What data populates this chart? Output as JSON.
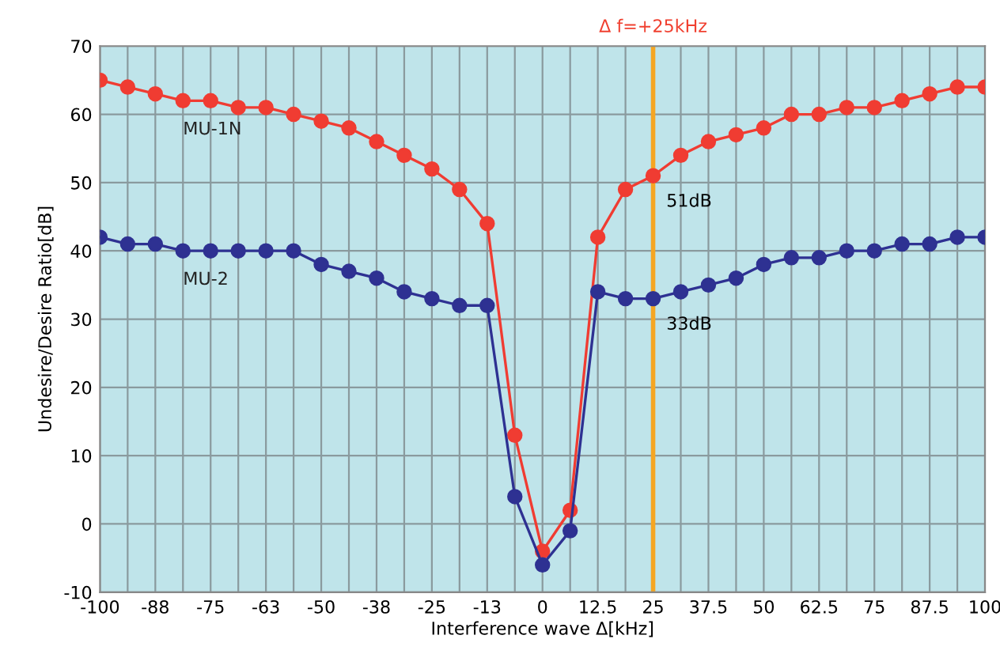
{
  "chart_data": {
    "type": "line",
    "xlabel": "Interference wave Δ[kHz]",
    "ylabel": "Undesire/Desire Ratio[dB]",
    "x": [
      -100,
      -93.75,
      -87.5,
      -81.25,
      -75,
      -68.75,
      -62.5,
      -56.25,
      -50,
      -43.75,
      -37.5,
      -31.25,
      -25,
      -18.75,
      -12.5,
      -6.25,
      0,
      6.25,
      12.5,
      18.75,
      25,
      31.25,
      37.5,
      43.75,
      50,
      56.25,
      62.5,
      68.75,
      75,
      81.25,
      87.5,
      93.75,
      100
    ],
    "series": [
      {
        "name": "MU-1N",
        "color": "#f03c32",
        "values": [
          65,
          64,
          63,
          62,
          62,
          61,
          61,
          60,
          59,
          58,
          56,
          54,
          52,
          49,
          44,
          13,
          -4,
          2,
          42,
          49,
          51,
          54,
          56,
          57,
          58,
          60,
          60,
          61,
          61,
          62,
          63,
          64,
          64
        ]
      },
      {
        "name": "MU-2",
        "color": "#2e3192",
        "values": [
          42,
          41,
          41,
          40,
          40,
          40,
          40,
          40,
          38,
          37,
          36,
          34,
          33,
          32,
          32,
          4,
          -6,
          -1,
          34,
          33,
          33,
          34,
          35,
          36,
          38,
          39,
          39,
          40,
          40,
          41,
          41,
          42,
          42
        ]
      }
    ],
    "xlim": [
      -100,
      100
    ],
    "ylim": [
      -10,
      70
    ],
    "xticks": [
      -100,
      {
        "value": -93.75,
        "label": null
      },
      {
        "value": -87.5,
        "label": "-88"
      },
      {
        "value": -81.25,
        "label": null
      },
      -75,
      {
        "value": -68.75,
        "label": null
      },
      {
        "value": -62.5,
        "label": "-63"
      },
      {
        "value": -56.25,
        "label": null
      },
      -50,
      {
        "value": -43.75,
        "label": null
      },
      {
        "value": -37.5,
        "label": "-38"
      },
      {
        "value": -31.25,
        "label": null
      },
      -25,
      {
        "value": -18.75,
        "label": null
      },
      {
        "value": -12.5,
        "label": "-13"
      },
      {
        "value": -6.25,
        "label": null
      },
      0,
      {
        "value": 6.25,
        "label": null
      },
      12.5,
      {
        "value": 18.75,
        "label": null
      },
      25,
      {
        "value": 31.25,
        "label": null
      },
      37.5,
      {
        "value": 43.75,
        "label": null
      },
      50,
      {
        "value": 56.25,
        "label": null
      },
      62.5,
      {
        "value": 68.75,
        "label": null
      },
      75,
      {
        "value": 81.25,
        "label": null
      },
      87.5,
      {
        "value": 93.75,
        "label": null
      },
      100
    ],
    "yticks": [
      -10,
      0,
      10,
      20,
      30,
      40,
      50,
      60,
      70
    ],
    "grid": true,
    "legend": false,
    "marker": "circle",
    "line_style": "solid",
    "ref_lines": [
      {
        "axis": "x",
        "value": 25,
        "label": "Δ f=+25kHz",
        "color": "#f5a623"
      }
    ],
    "annotations": [
      {
        "text": "51dB",
        "x": 25,
        "y": 51
      },
      {
        "text": "33dB",
        "x": 25,
        "y": 33
      }
    ]
  }
}
